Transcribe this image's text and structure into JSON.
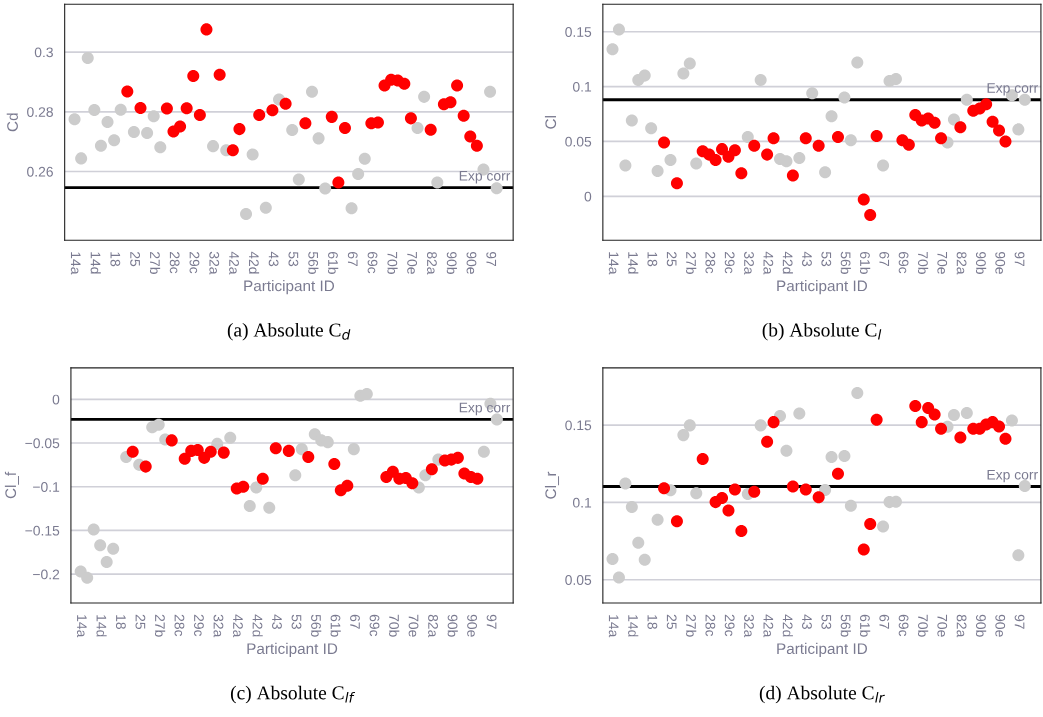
{
  "chart_data": [
    {
      "type": "scatter",
      "title": "(a) Absolute C$_{d}$",
      "xlabel": "Participant ID",
      "ylabel": "Cd",
      "categories": [
        "14a",
        null,
        null,
        "14d",
        null,
        null,
        "18",
        null,
        null,
        "25",
        null,
        null,
        "27b",
        null,
        null,
        "28c",
        null,
        null,
        "29c",
        null,
        null,
        "32a",
        null,
        null,
        "42a",
        null,
        null,
        "42d",
        null,
        null,
        "43",
        null,
        null,
        "53",
        null,
        null,
        "56b",
        null,
        null,
        "61b",
        null,
        null,
        "67",
        null,
        null,
        "69c",
        null,
        null,
        "70b",
        null,
        null,
        "70e",
        null,
        null,
        "82a",
        null,
        null,
        "90b",
        null,
        null,
        "90e",
        null,
        null,
        "97",
        null
      ],
      "ylim": [
        0.237,
        0.316
      ],
      "yticks": [
        0.26,
        0.28,
        {
          "value": 0.3,
          "label": "0.3"
        }
      ],
      "grid": "y",
      "marker": "circle",
      "ref_lines": [
        {
          "axis": "y",
          "value": 0.2546,
          "label": "Exp corr",
          "color": "#000000"
        }
      ],
      "series": [
        {
          "color": "#cccccc",
          "values": [
            0.2775,
            0.2644,
            0.298,
            0.2806,
            0.2686,
            0.2766,
            0.2705,
            0.2807,
            null,
            0.2732,
            null,
            0.2729,
            0.2785,
            0.2681,
            null,
            null,
            null,
            null,
            null,
            null,
            null,
            0.2685,
            null,
            0.2671,
            null,
            null,
            0.2458,
            0.2657,
            null,
            0.2479,
            null,
            0.2841,
            null,
            0.2739,
            0.2573,
            null,
            0.2867,
            0.2711,
            0.2543,
            null,
            null,
            null,
            0.2477,
            0.2592,
            0.2643,
            null,
            null,
            null,
            null,
            null,
            null,
            null,
            0.2746,
            0.285,
            null,
            0.2563,
            null,
            null,
            null,
            null,
            null,
            null,
            0.2607,
            0.2867,
            0.2544
          ]
        },
        {
          "color": "#ff0000",
          "values": [
            null,
            null,
            null,
            null,
            null,
            null,
            null,
            null,
            0.2868,
            null,
            0.2813,
            null,
            null,
            null,
            0.2811,
            0.2734,
            0.2751,
            0.2812,
            0.292,
            0.2789,
            0.3076,
            null,
            0.2924,
            null,
            0.2671,
            0.2742,
            null,
            null,
            0.2789,
            null,
            0.2805,
            null,
            0.2827,
            null,
            null,
            0.2762,
            null,
            null,
            null,
            0.2783,
            0.2563,
            0.2746,
            null,
            null,
            null,
            0.2762,
            0.2764,
            0.2888,
            0.2907,
            0.2905,
            0.2894,
            0.2778,
            null,
            null,
            0.274,
            null,
            0.2825,
            0.2832,
            0.2888,
            0.2787,
            0.2717,
            0.2686,
            null,
            null,
            null
          ]
        }
      ]
    },
    {
      "type": "scatter",
      "title": "(b) Absolute C$_{l}$",
      "xlabel": "Participant ID",
      "ylabel": "Cl",
      "categories": [
        "14a",
        null,
        null,
        "14d",
        null,
        null,
        "18",
        null,
        null,
        "25",
        null,
        null,
        "27b",
        null,
        null,
        "28c",
        null,
        null,
        "29c",
        null,
        null,
        "32a",
        null,
        null,
        "42a",
        null,
        null,
        "42d",
        null,
        null,
        "43",
        null,
        null,
        "53",
        null,
        null,
        "56b",
        null,
        null,
        "61b",
        null,
        null,
        "67",
        null,
        null,
        "69c",
        null,
        null,
        "70b",
        null,
        null,
        "70e",
        null,
        null,
        "82a",
        null,
        null,
        "90b",
        null,
        null,
        "90e",
        null,
        null,
        "97",
        null
      ],
      "ylim": [
        -0.04,
        0.175
      ],
      "yticks": [
        0,
        0.05,
        {
          "value": 0.1,
          "label": "0.1"
        },
        0.15
      ],
      "grid": "y",
      "marker": "circle",
      "ref_lines": [
        {
          "axis": "y",
          "value": 0.088,
          "label": "Exp corr",
          "color": "#000000"
        }
      ],
      "series": [
        {
          "color": "#cccccc",
          "values": [
            0.134,
            0.152,
            0.028,
            0.069,
            0.106,
            0.11,
            0.062,
            0.023,
            null,
            0.033,
            null,
            0.112,
            0.121,
            0.03,
            null,
            null,
            null,
            null,
            null,
            null,
            null,
            0.054,
            null,
            0.106,
            null,
            null,
            0.034,
            0.032,
            null,
            0.035,
            null,
            0.094,
            null,
            0.022,
            0.073,
            null,
            0.09,
            0.051,
            0.122,
            null,
            null,
            null,
            0.028,
            0.105,
            0.107,
            null,
            null,
            null,
            null,
            null,
            null,
            null,
            0.049,
            0.07,
            null,
            0.088,
            null,
            null,
            null,
            null,
            null,
            null,
            0.092,
            0.061,
            0.088
          ]
        },
        {
          "color": "#ff0000",
          "values": [
            null,
            null,
            null,
            null,
            null,
            null,
            null,
            null,
            0.049,
            null,
            0.012,
            null,
            null,
            null,
            0.041,
            0.038,
            0.033,
            0.043,
            0.036,
            0.042,
            0.021,
            null,
            0.046,
            null,
            0.038,
            0.053,
            null,
            null,
            0.019,
            null,
            0.053,
            null,
            0.046,
            null,
            null,
            0.054,
            null,
            null,
            null,
            -0.003,
            -0.017,
            0.055,
            null,
            null,
            null,
            0.051,
            0.047,
            0.074,
            0.069,
            0.071,
            0.067,
            0.053,
            null,
            null,
            0.063,
            null,
            0.078,
            0.08,
            0.084,
            0.068,
            0.06,
            0.05,
            null,
            null,
            null
          ]
        }
      ]
    },
    {
      "type": "scatter",
      "title": "(c) Absolute C$_{lf}$",
      "xlabel": "Participant ID",
      "ylabel": "Cl_f",
      "categories": [
        "14a",
        null,
        null,
        "14d",
        null,
        null,
        "18",
        null,
        null,
        "25",
        null,
        null,
        "27b",
        null,
        null,
        "28c",
        null,
        null,
        "29c",
        null,
        null,
        "32a",
        null,
        null,
        "42a",
        null,
        null,
        "42d",
        null,
        null,
        "43",
        null,
        null,
        "53",
        null,
        null,
        "56b",
        null,
        null,
        "61b",
        null,
        null,
        "67",
        null,
        null,
        "69c",
        null,
        null,
        "70b",
        null,
        null,
        "70e",
        null,
        null,
        "82a",
        null,
        null,
        "90b",
        null,
        null,
        "90e",
        null,
        null,
        "97",
        null
      ],
      "ylim": [
        -0.233,
        0.036
      ],
      "yticks": [
        {
          "value": -0.2,
          "label": "−0.2"
        },
        {
          "value": -0.15,
          "label": "−0.15"
        },
        {
          "value": -0.1,
          "label": "−0.1"
        },
        {
          "value": -0.05,
          "label": "−0.05"
        },
        0
      ],
      "grid": "y",
      "marker": "circle",
      "ref_lines": [
        {
          "axis": "y",
          "value": -0.023,
          "label": "Exp corr",
          "color": "#000000"
        }
      ],
      "series": [
        {
          "color": "#cccccc",
          "values": [
            -0.197,
            -0.204,
            -0.149,
            -0.167,
            -0.186,
            -0.171,
            null,
            -0.066,
            null,
            -0.075,
            null,
            -0.032,
            -0.029,
            -0.046,
            null,
            null,
            null,
            null,
            null,
            null,
            null,
            -0.051,
            null,
            -0.044,
            null,
            null,
            -0.122,
            -0.101,
            null,
            -0.124,
            null,
            null,
            null,
            -0.087,
            -0.057,
            null,
            -0.04,
            -0.047,
            -0.049,
            null,
            null,
            null,
            -0.057,
            0.004,
            0.006,
            null,
            null,
            null,
            null,
            null,
            null,
            null,
            -0.101,
            -0.087,
            null,
            -0.069,
            null,
            null,
            null,
            null,
            null,
            null,
            -0.06,
            -0.005,
            -0.023
          ]
        },
        {
          "color": "#ff0000",
          "values": [
            null,
            null,
            null,
            null,
            null,
            null,
            null,
            null,
            -0.06,
            null,
            -0.077,
            null,
            null,
            null,
            -0.047,
            null,
            -0.068,
            -0.059,
            -0.058,
            -0.067,
            -0.06,
            null,
            -0.061,
            null,
            -0.102,
            -0.1,
            null,
            null,
            -0.091,
            null,
            -0.056,
            null,
            -0.059,
            null,
            null,
            -0.066,
            null,
            null,
            null,
            -0.074,
            -0.104,
            -0.099,
            null,
            null,
            null,
            null,
            null,
            -0.089,
            -0.083,
            -0.091,
            -0.09,
            -0.096,
            null,
            null,
            -0.08,
            null,
            -0.07,
            -0.069,
            -0.067,
            -0.085,
            -0.089,
            -0.091,
            null,
            null,
            null
          ]
        }
      ]
    },
    {
      "type": "scatter",
      "title": "(d) Absolute C$_{lr}$",
      "xlabel": "Participant ID",
      "ylabel": "Cl_r",
      "categories": [
        "14a",
        null,
        null,
        "14d",
        null,
        null,
        "18",
        null,
        null,
        "25",
        null,
        null,
        "27b",
        null,
        null,
        "28c",
        null,
        null,
        "29c",
        null,
        null,
        "32a",
        null,
        null,
        "42a",
        null,
        null,
        "42d",
        null,
        null,
        "43",
        null,
        null,
        "53",
        null,
        null,
        "56b",
        null,
        null,
        "61b",
        null,
        null,
        "67",
        null,
        null,
        "69c",
        null,
        null,
        "70b",
        null,
        null,
        "70e",
        null,
        null,
        "82a",
        null,
        null,
        "90b",
        null,
        null,
        "90e",
        null,
        null,
        "97",
        null
      ],
      "ylim": [
        0.035,
        0.187
      ],
      "yticks": [
        0.05,
        {
          "value": 0.1,
          "label": "0.1"
        },
        0.15
      ],
      "grid": "y",
      "marker": "circle",
      "ref_lines": [
        {
          "axis": "y",
          "value": 0.1103,
          "label": "Exp corr",
          "color": "#000000"
        }
      ],
      "series": [
        {
          "color": "#cccccc",
          "values": [
            0.0634,
            0.0515,
            0.1123,
            0.097,
            0.0739,
            0.0629,
            null,
            0.0888,
            null,
            0.1078,
            null,
            0.1435,
            0.1498,
            0.106,
            null,
            null,
            null,
            null,
            null,
            null,
            null,
            0.1054,
            null,
            0.1498,
            null,
            null,
            0.1558,
            0.1334,
            null,
            0.1575,
            null,
            null,
            null,
            0.108,
            0.1293,
            null,
            0.13,
            0.0978,
            0.1707,
            null,
            null,
            null,
            0.0845,
            0.1002,
            0.1004,
            null,
            null,
            null,
            null,
            null,
            null,
            null,
            0.1489,
            0.1565,
            null,
            0.1578,
            null,
            null,
            null,
            null,
            null,
            null,
            0.153,
            0.0659,
            0.1106
          ]
        },
        {
          "color": "#ff0000",
          "values": [
            null,
            null,
            null,
            null,
            null,
            null,
            null,
            null,
            0.1091,
            null,
            0.0879,
            null,
            null,
            null,
            0.128,
            null,
            0.1002,
            0.1028,
            0.0948,
            0.1084,
            0.0815,
            null,
            0.1069,
            null,
            0.1392,
            0.1519,
            null,
            null,
            0.1103,
            null,
            0.1084,
            null,
            0.1034,
            null,
            null,
            0.1185,
            null,
            null,
            null,
            0.0696,
            0.086,
            0.1534,
            null,
            null,
            null,
            null,
            null,
            0.1623,
            0.1519,
            0.161,
            0.1569,
            0.1476,
            null,
            null,
            0.142,
            null,
            0.1476,
            0.1476,
            0.1504,
            0.1519,
            0.1491,
            0.1412,
            null,
            null,
            null
          ]
        }
      ]
    }
  ]
}
